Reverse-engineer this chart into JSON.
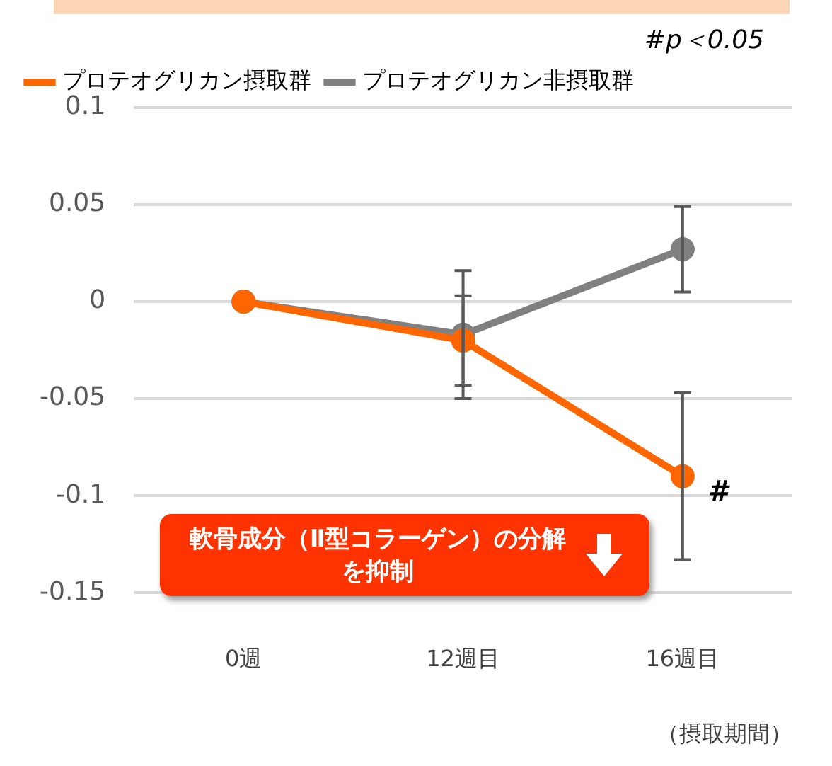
{
  "chart_data": {
    "type": "line",
    "categories": [
      "0週",
      "12週目",
      "16週目"
    ],
    "xlabel": "（摂取期間）",
    "series": [
      {
        "name": "プロテオグリカン摂取群",
        "color": "#ff6600",
        "values": [
          0,
          -0.02,
          -0.09
        ],
        "errors": [
          null,
          0.023,
          0.043
        ]
      },
      {
        "name": "プロテオグリカン非摂取群",
        "color": "#808080",
        "values": [
          0,
          -0.017,
          0.027
        ],
        "errors": [
          null,
          0.033,
          0.022
        ]
      }
    ],
    "ylim": [
      -0.15,
      0.1
    ],
    "yticks": [
      -0.15,
      -0.1,
      -0.05,
      0,
      0.05,
      0.1
    ],
    "grid": "y",
    "legend": "top left",
    "marker": "circle",
    "line_style": "solid",
    "annotations": [
      "#p＜0.05",
      {
        "text": "#",
        "x": "16週目",
        "y": -0.09
      },
      "軟骨成分（Ⅱ型コラーゲン）の分解を抑制"
    ]
  }
}
